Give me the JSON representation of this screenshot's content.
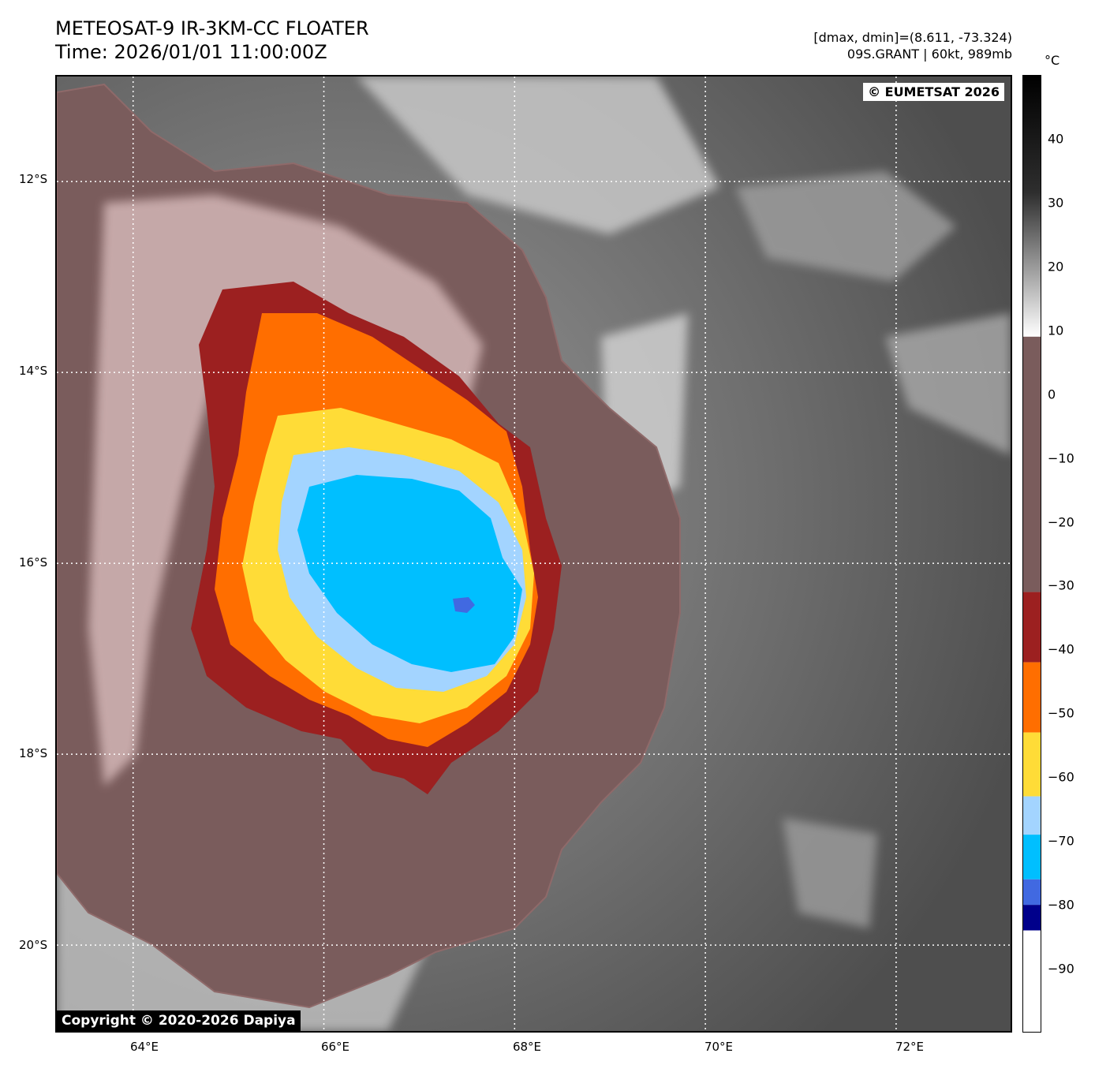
{
  "header": {
    "title": "METEOSAT-9 IR-3KM-CC FLOATER",
    "time": "Time: 2026/01/01 11:00:00Z",
    "dminmax": "[dmax, dmin]=(8.611, -73.324)",
    "storm": "09S.GRANT | 60kt, 989mb"
  },
  "map": {
    "credit": "© EUMETSAT 2026",
    "copyright": "Copyright © 2020-2026 Dapiya",
    "lon_range": [
      63.2,
      73.2
    ],
    "lat_range": [
      -10.9,
      -20.9
    ],
    "lon_ticks": [
      64,
      66,
      68,
      70,
      72
    ],
    "lon_labels": [
      "64°E",
      "66°E",
      "68°E",
      "70°E",
      "72°E"
    ],
    "lat_ticks": [
      -12,
      -14,
      -16,
      -18,
      -20
    ],
    "lat_labels": [
      "12°S",
      "14°S",
      "16°S",
      "18°S",
      "20°S"
    ],
    "storm_center": {
      "lon": 66.9,
      "lat": -16.0
    }
  },
  "colorbar": {
    "unit": "°C",
    "range": [
      -100,
      50
    ],
    "ticks": [
      40,
      30,
      20,
      10,
      0,
      -10,
      -20,
      -30,
      -40,
      -50,
      -60,
      -70,
      -80,
      -90
    ],
    "tick_labels": [
      "40",
      "30",
      "20",
      "10",
      "0",
      "−10",
      "−20",
      "−30",
      "−40",
      "−50",
      "−60",
      "−70",
      "−80",
      "−90"
    ],
    "bands": [
      {
        "from": 50,
        "to": 9,
        "color": "gray-gradient"
      },
      {
        "from": 9,
        "to": -31,
        "color": "#7a5c5c"
      },
      {
        "from": -31,
        "to": -42,
        "color": "#9c2020"
      },
      {
        "from": -42,
        "to": -53,
        "color": "#ff6e00"
      },
      {
        "from": -53,
        "to": -63,
        "color": "#ffdc37"
      },
      {
        "from": -63,
        "to": -69,
        "color": "#a3d4ff"
      },
      {
        "from": -69,
        "to": -76,
        "color": "#00bfff"
      },
      {
        "from": -76,
        "to": -80,
        "color": "#4169e1"
      },
      {
        "from": -80,
        "to": -84,
        "color": "#00008b"
      },
      {
        "from": -84,
        "to": -100,
        "color": "#ffffff"
      }
    ]
  }
}
